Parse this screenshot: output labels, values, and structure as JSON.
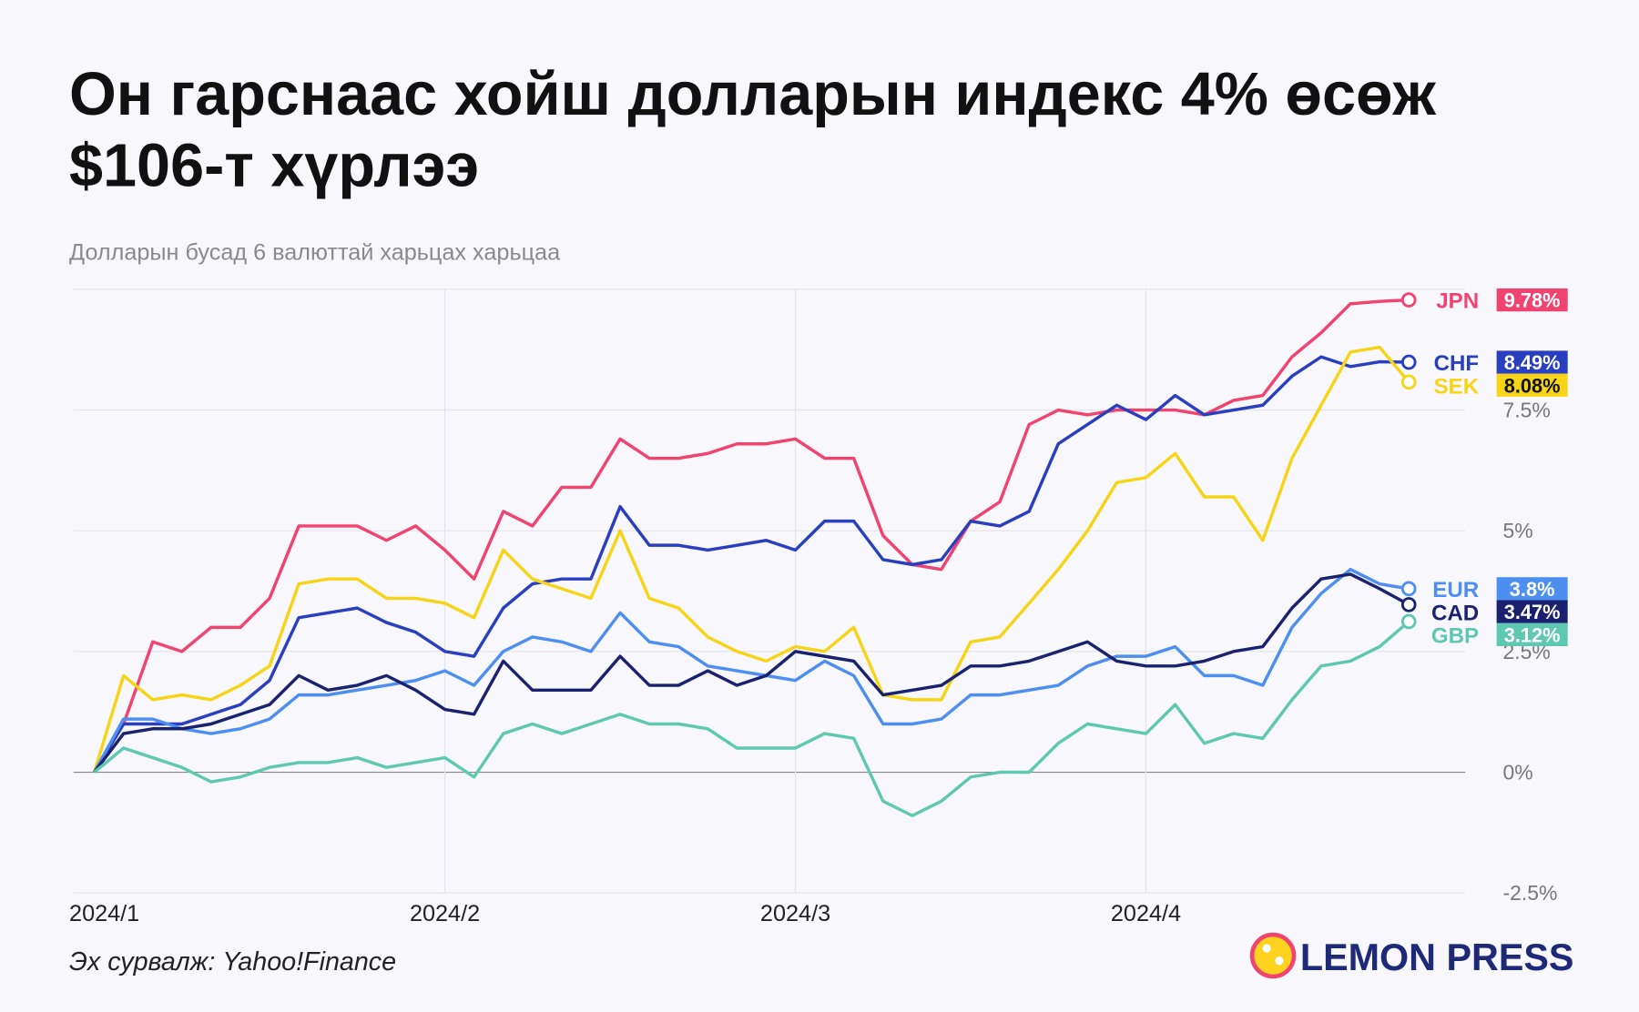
{
  "chart_data": {
    "type": "line",
    "title": [
      "Он гарснаас хойш долларын индекс 4% өсөж",
      "$106-т хүрлээ"
    ],
    "subtitle": "Долларын бусад 6 валюттай харьцах харьцаа",
    "source": "Эх сурвалж: Yahoo!Finance",
    "brand": "LEMON PRESS",
    "categories": [
      "2024/1",
      null,
      null,
      null,
      null,
      null,
      null,
      null,
      null,
      null,
      null,
      null,
      "2024/2",
      null,
      null,
      null,
      null,
      null,
      null,
      null,
      null,
      null,
      null,
      null,
      "2024/3",
      null,
      null,
      null,
      null,
      null,
      null,
      null,
      null,
      null,
      null,
      null,
      "2024/4",
      null,
      null,
      null,
      null,
      null,
      null,
      null,
      null,
      null
    ],
    "ylim": [
      -2.5,
      10
    ],
    "yticks": [
      {
        "value": -2.5,
        "label": "-2.5%"
      },
      {
        "value": 0,
        "label": "0%"
      },
      {
        "value": 2.5,
        "label": "2.5%"
      },
      {
        "value": 5,
        "label": "5%"
      },
      {
        "value": 7.5,
        "label": "7.5%"
      }
    ],
    "grid": true,
    "series": [
      {
        "name": "JPN",
        "color": "#f0436f",
        "values": [
          0,
          1.0,
          2.7,
          2.5,
          3.0,
          3.0,
          3.6,
          5.1,
          5.1,
          5.1,
          4.8,
          5.1,
          4.6,
          4.0,
          5.4,
          5.1,
          5.9,
          5.9,
          6.9,
          6.5,
          6.5,
          6.6,
          6.8,
          6.8,
          6.9,
          6.5,
          6.5,
          4.9,
          4.3,
          4.2,
          5.2,
          5.6,
          7.2,
          7.5,
          7.4,
          7.5,
          7.5,
          7.5,
          7.4,
          7.7,
          7.8,
          8.6,
          9.1,
          9.7,
          9.75,
          9.78
        ],
        "value_labels": [
          null,
          null,
          null,
          null,
          null,
          null,
          null,
          null,
          null,
          null,
          null,
          null,
          null,
          null,
          null,
          null,
          null,
          null,
          null,
          null,
          null,
          null,
          null,
          null,
          null,
          null,
          null,
          null,
          null,
          null,
          null,
          null,
          null,
          null,
          null,
          null,
          null,
          null,
          null,
          null,
          null,
          null,
          null,
          null,
          null,
          "9.78%"
        ]
      },
      {
        "name": "CHF",
        "color": "#2a3fbf",
        "values": [
          0,
          1.0,
          1.0,
          1.0,
          1.2,
          1.4,
          1.9,
          3.2,
          3.3,
          3.4,
          3.1,
          2.9,
          2.5,
          2.4,
          3.4,
          3.9,
          4.0,
          4.0,
          5.5,
          4.7,
          4.7,
          4.6,
          4.7,
          4.8,
          4.6,
          5.2,
          5.2,
          4.4,
          4.3,
          4.4,
          5.2,
          5.1,
          5.4,
          6.8,
          7.2,
          7.6,
          7.3,
          7.8,
          7.4,
          7.5,
          7.6,
          8.2,
          8.6,
          8.4,
          8.5,
          8.49
        ],
        "value_labels": [
          null,
          null,
          null,
          null,
          null,
          null,
          null,
          null,
          null,
          null,
          null,
          null,
          null,
          null,
          null,
          null,
          null,
          null,
          null,
          null,
          null,
          null,
          null,
          null,
          null,
          null,
          null,
          null,
          null,
          null,
          null,
          null,
          null,
          null,
          null,
          null,
          null,
          null,
          null,
          null,
          null,
          null,
          null,
          null,
          null,
          "8.49%"
        ]
      },
      {
        "name": "SEK",
        "color": "#f7d417",
        "values": [
          0,
          2.0,
          1.5,
          1.6,
          1.5,
          1.8,
          2.2,
          3.9,
          4.0,
          4.0,
          3.6,
          3.6,
          3.5,
          3.2,
          4.6,
          4.0,
          3.8,
          3.6,
          5.0,
          3.6,
          3.4,
          2.8,
          2.5,
          2.3,
          2.6,
          2.5,
          3.0,
          1.6,
          1.5,
          1.5,
          2.7,
          2.8,
          3.5,
          4.2,
          5.0,
          6.0,
          6.1,
          6.6,
          5.7,
          5.7,
          4.8,
          6.5,
          7.6,
          8.7,
          8.8,
          8.08
        ],
        "value_labels": [
          null,
          null,
          null,
          null,
          null,
          null,
          null,
          null,
          null,
          null,
          null,
          null,
          null,
          null,
          null,
          null,
          null,
          null,
          null,
          null,
          null,
          null,
          null,
          null,
          null,
          null,
          null,
          null,
          null,
          null,
          null,
          null,
          null,
          null,
          null,
          null,
          null,
          null,
          null,
          null,
          null,
          null,
          null,
          null,
          null,
          "8.08%"
        ]
      },
      {
        "name": "EUR",
        "color": "#4d8ff0",
        "values": [
          0,
          1.1,
          1.1,
          0.9,
          0.8,
          0.9,
          1.1,
          1.6,
          1.6,
          1.7,
          1.8,
          1.9,
          2.1,
          1.8,
          2.5,
          2.8,
          2.7,
          2.5,
          3.3,
          2.7,
          2.6,
          2.2,
          2.1,
          2.0,
          1.9,
          2.3,
          2.0,
          1.0,
          1.0,
          1.1,
          1.6,
          1.6,
          1.7,
          1.8,
          2.2,
          2.4,
          2.4,
          2.6,
          2.0,
          2.0,
          1.8,
          3.0,
          3.7,
          4.2,
          3.9,
          3.8
        ],
        "value_labels": [
          null,
          null,
          null,
          null,
          null,
          null,
          null,
          null,
          null,
          null,
          null,
          null,
          null,
          null,
          null,
          null,
          null,
          null,
          null,
          null,
          null,
          null,
          null,
          null,
          null,
          null,
          null,
          null,
          null,
          null,
          null,
          null,
          null,
          null,
          null,
          null,
          null,
          null,
          null,
          null,
          null,
          null,
          null,
          null,
          null,
          "3.8%"
        ]
      },
      {
        "name": "CAD",
        "color": "#1a2270",
        "values": [
          0,
          0.8,
          0.9,
          0.9,
          1.0,
          1.2,
          1.4,
          2.0,
          1.7,
          1.8,
          2.0,
          1.7,
          1.3,
          1.2,
          2.3,
          1.7,
          1.7,
          1.7,
          2.4,
          1.8,
          1.8,
          2.1,
          1.8,
          2.0,
          2.5,
          2.4,
          2.3,
          1.6,
          1.7,
          1.8,
          2.2,
          2.2,
          2.3,
          2.5,
          2.7,
          2.3,
          2.2,
          2.2,
          2.3,
          2.5,
          2.6,
          3.4,
          4.0,
          4.1,
          3.8,
          3.47
        ],
        "value_labels": [
          null,
          null,
          null,
          null,
          null,
          null,
          null,
          null,
          null,
          null,
          null,
          null,
          null,
          null,
          null,
          null,
          null,
          null,
          null,
          null,
          null,
          null,
          null,
          null,
          null,
          null,
          null,
          null,
          null,
          null,
          null,
          null,
          null,
          null,
          null,
          null,
          null,
          null,
          null,
          null,
          null,
          null,
          null,
          null,
          null,
          "3.47%"
        ]
      },
      {
        "name": "GBP",
        "color": "#5ec8b0",
        "values": [
          0,
          0.5,
          0.3,
          0.1,
          -0.2,
          -0.1,
          0.1,
          0.2,
          0.2,
          0.3,
          0.1,
          0.2,
          0.3,
          -0.1,
          0.8,
          1.0,
          0.8,
          1.0,
          1.2,
          1.0,
          1.0,
          0.9,
          0.5,
          0.5,
          0.5,
          0.8,
          0.7,
          -0.6,
          -0.9,
          -0.6,
          -0.1,
          0.0,
          0.0,
          0.6,
          1.0,
          0.9,
          0.8,
          1.4,
          0.6,
          0.8,
          0.7,
          1.5,
          2.2,
          2.3,
          2.6,
          3.12
        ],
        "value_labels": [
          null,
          null,
          null,
          null,
          null,
          null,
          null,
          null,
          null,
          null,
          null,
          null,
          null,
          null,
          null,
          null,
          null,
          null,
          null,
          null,
          null,
          null,
          null,
          null,
          null,
          null,
          null,
          null,
          null,
          null,
          null,
          null,
          null,
          null,
          null,
          null,
          null,
          null,
          null,
          null,
          null,
          null,
          null,
          null,
          null,
          "3.12%"
        ]
      }
    ]
  }
}
